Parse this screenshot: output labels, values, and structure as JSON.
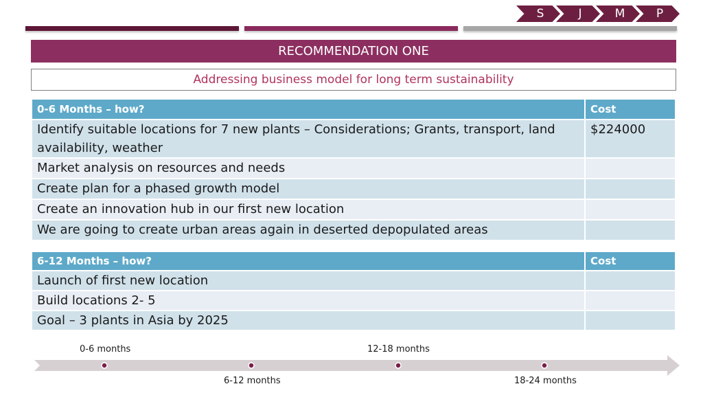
{
  "nav": {
    "chevrons": [
      "S",
      "J",
      "M",
      "P"
    ]
  },
  "title": "RECOMMENDATION ONE",
  "subtitle": "Addressing business model for long term sustainability",
  "table1": {
    "header": {
      "task": "0-6 Months – how?",
      "cost": "Cost"
    },
    "rows": [
      {
        "task": "Identify suitable locations for 7 new plants – Considerations; Grants, transport, land availability, weather",
        "cost": "$224000"
      },
      {
        "task": "Market analysis on resources and needs",
        "cost": ""
      },
      {
        "task": "Create plan for a phased growth model",
        "cost": ""
      },
      {
        "task": "Create an innovation hub in our first new location",
        "cost": ""
      },
      {
        "task": "We are going to create urban areas again in deserted depopulated areas",
        "cost": ""
      }
    ]
  },
  "table2": {
    "header": {
      "task": "6-12 Months – how?",
      "cost": "Cost"
    },
    "rows": [
      {
        "task": "Launch of first new location",
        "cost": ""
      },
      {
        "task": "Build locations 2- 5",
        "cost": ""
      },
      {
        "task": "Goal – 3 plants in Asia by 2025",
        "cost": ""
      }
    ]
  },
  "timeline": {
    "labels": [
      "0-6 months",
      "6-12 months",
      "12-18 months",
      "18-24 months"
    ]
  },
  "colors": {
    "plum": "#8c2f60",
    "dark_plum": "#6d1f42",
    "header_blue": "#5ea9c9",
    "row_a": "#d0e1ea",
    "row_b": "#e9eef5",
    "arrow_gray": "#d6d0d3"
  }
}
